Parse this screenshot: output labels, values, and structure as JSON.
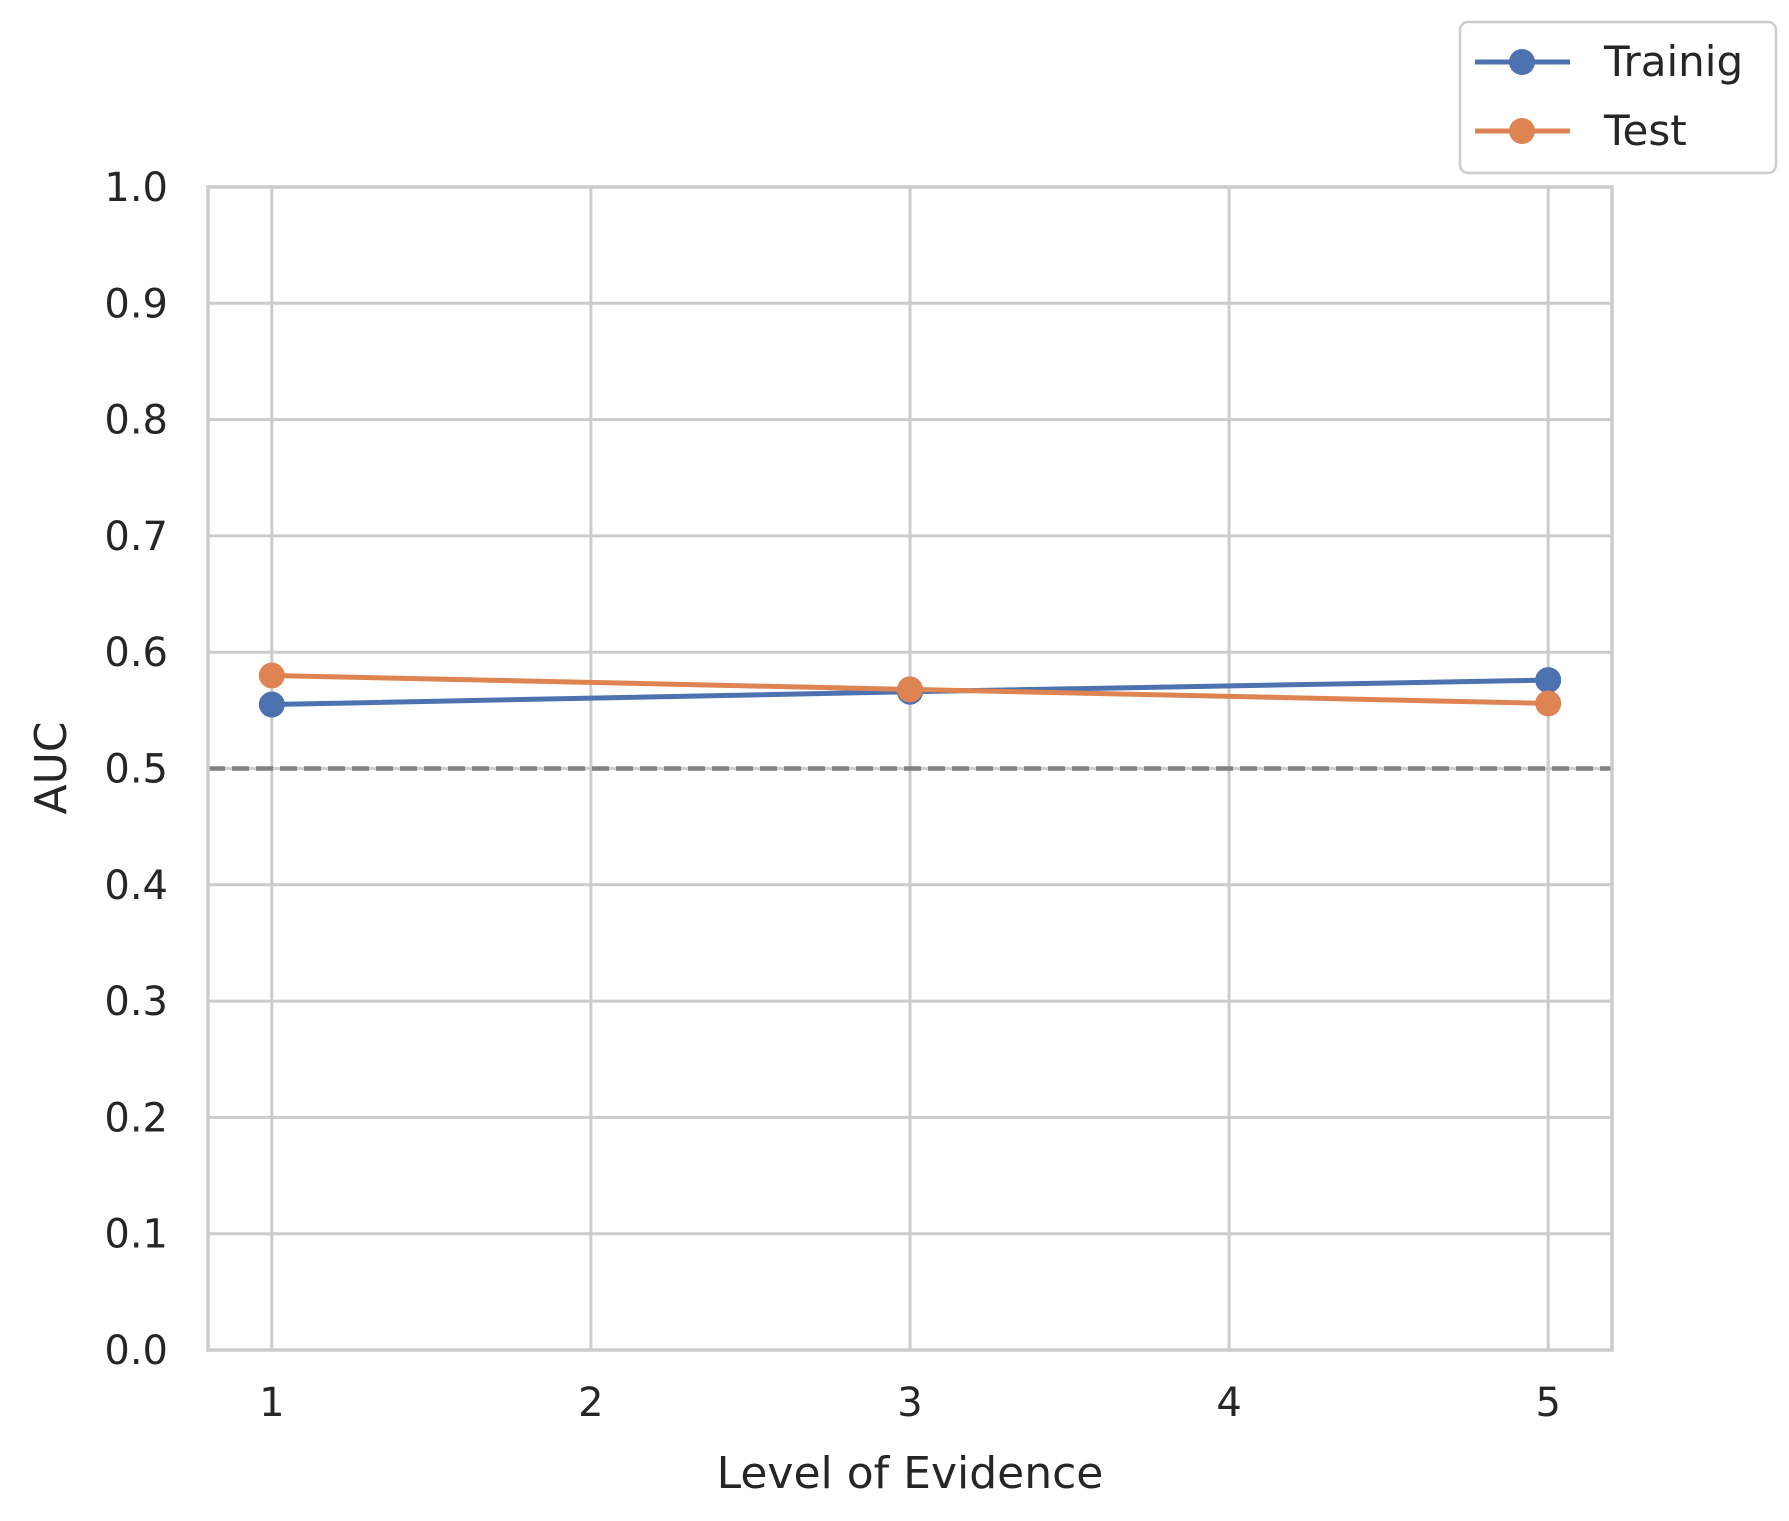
{
  "chart_data": {
    "type": "line",
    "title": "",
    "xlabel": "Level of Evidence",
    "ylabel": "AUC",
    "x": [
      1,
      3,
      5
    ],
    "xticks": [
      1,
      2,
      3,
      4,
      5
    ],
    "xlim": [
      0.8,
      5.2
    ],
    "yticks": [
      0.0,
      0.1,
      0.2,
      0.3,
      0.4,
      0.5,
      0.6,
      0.7,
      0.8,
      0.9,
      1.0
    ],
    "ylim": [
      0.0,
      1.0
    ],
    "grid": true,
    "legend_position": "top-right, outside plot",
    "reference_line": {
      "y": 0.5,
      "style": "dashed",
      "color": "#808080"
    },
    "series": [
      {
        "name": "Trainig",
        "color": "#4c72b0",
        "values": [
          0.555,
          0.566,
          0.576
        ]
      },
      {
        "name": "Test",
        "color": "#dd8452",
        "values": [
          0.58,
          0.568,
          0.556
        ]
      }
    ]
  }
}
